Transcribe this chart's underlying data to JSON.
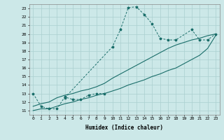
{
  "xlabel": "Humidex (Indice chaleur)",
  "bg_color": "#cce8e8",
  "grid_color": "#aacfcf",
  "line_color": "#1a6e6a",
  "xlim": [
    -0.5,
    23.5
  ],
  "ylim": [
    10.5,
    23.5
  ],
  "xticks": [
    0,
    1,
    2,
    3,
    4,
    5,
    6,
    7,
    8,
    9,
    10,
    11,
    12,
    13,
    14,
    15,
    16,
    17,
    18,
    19,
    20,
    21,
    22,
    23
  ],
  "yticks": [
    11,
    12,
    13,
    14,
    15,
    16,
    17,
    18,
    19,
    20,
    21,
    22,
    23
  ],
  "s1x": [
    0,
    1,
    2,
    3,
    4,
    5,
    6,
    7,
    8,
    9
  ],
  "s1y": [
    13.0,
    11.5,
    11.2,
    11.2,
    12.6,
    12.3,
    12.3,
    12.8,
    13.0,
    13.0
  ],
  "s2x": [
    4,
    10,
    11,
    12,
    13,
    14,
    15,
    16,
    17,
    18,
    20,
    21,
    22,
    23
  ],
  "s2y": [
    12.5,
    18.5,
    20.5,
    23.1,
    23.2,
    22.3,
    21.2,
    19.5,
    19.3,
    19.3,
    20.5,
    19.3,
    19.3,
    20.0
  ],
  "s3x": [
    0,
    1,
    2,
    3,
    4,
    5,
    6,
    7,
    8,
    9,
    10,
    11,
    12,
    13,
    14,
    15,
    16,
    17,
    18,
    19,
    20,
    21,
    22,
    23
  ],
  "s3y": [
    11.0,
    11.2,
    11.2,
    11.5,
    11.8,
    12.0,
    12.3,
    12.5,
    12.8,
    13.0,
    13.3,
    13.6,
    14.0,
    14.3,
    14.6,
    15.0,
    15.3,
    15.7,
    16.0,
    16.5,
    17.0,
    17.5,
    18.3,
    19.8
  ],
  "s4x": [
    0,
    1,
    2,
    3,
    4,
    5,
    6,
    7,
    8,
    9,
    10,
    11,
    12,
    13,
    14,
    15,
    16,
    17,
    18,
    19,
    20,
    21,
    22,
    23
  ],
  "s4y": [
    11.5,
    11.8,
    12.0,
    12.5,
    12.8,
    13.0,
    13.3,
    13.5,
    13.8,
    14.2,
    14.8,
    15.3,
    15.8,
    16.3,
    16.8,
    17.3,
    17.8,
    18.3,
    18.7,
    19.0,
    19.3,
    19.5,
    19.8,
    20.0
  ]
}
